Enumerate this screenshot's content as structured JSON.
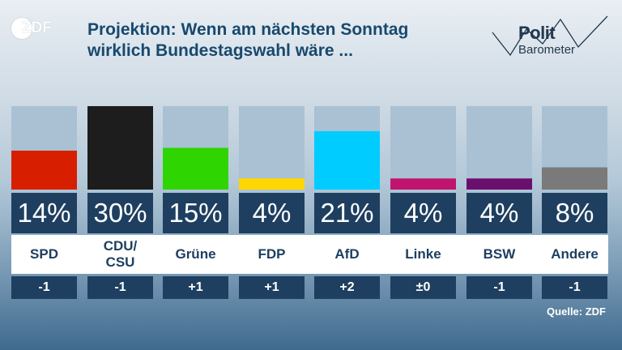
{
  "brand": {
    "logo_text": "ZDF",
    "right_logo_line1": "Polit",
    "right_logo_line2": "Barometer"
  },
  "title_lines": [
    "Projektion: Wenn am nächsten Sonntag",
    "wirklich Bundestagswahl wäre ..."
  ],
  "source": "Quelle: ZDF",
  "chart_data": {
    "type": "bar",
    "title": "Projektion: Wenn am nächsten Sonntag wirklich Bundestagswahl wäre ...",
    "categories": [
      "SPD",
      "CDU/\nCSU",
      "Grüne",
      "FDP",
      "AfD",
      "Linke",
      "BSW",
      "Andere"
    ],
    "values": [
      14,
      30,
      15,
      4,
      21,
      4,
      4,
      8
    ],
    "value_labels": [
      "14%",
      "30%",
      "15%",
      "4%",
      "21%",
      "4%",
      "4%",
      "8%"
    ],
    "changes": [
      "-1",
      "-1",
      "+1",
      "+1",
      "+2",
      "±0",
      "-1",
      "-1"
    ],
    "colors": [
      "#d71f00",
      "#1d1d1d",
      "#2fd500",
      "#ffd700",
      "#00ccff",
      "#c0146e",
      "#6b0f6e",
      "#7a7a7a"
    ],
    "ylim": [
      0,
      30
    ],
    "grid": false,
    "legend": "none"
  }
}
